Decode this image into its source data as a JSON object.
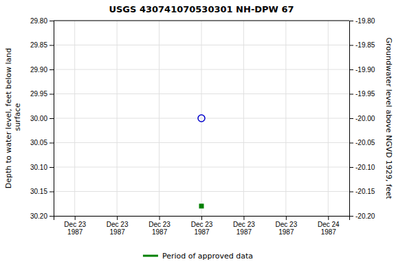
{
  "chart_data": {
    "type": "scatter",
    "title": "USGS 430741070530301 NH-DPW   67",
    "y_label": "Depth to water level, feet below land\n surface",
    "y2_label": "Groundwater level above NGVD 1929, feet",
    "categories": [
      "Dec 23\n1987",
      "Dec 23\n1987",
      "Dec 23\n1987",
      "Dec 23\n1987",
      "Dec 23\n1987",
      "Dec 23\n1987",
      "Dec 24\n1987"
    ],
    "series": [
      {
        "color": "#0000cc",
        "marker": "open-circle",
        "line_style": "none",
        "values": [
          null,
          null,
          null,
          30,
          null,
          null,
          null
        ]
      },
      {
        "name": "Period of approved data",
        "color": "#008000",
        "marker": "square",
        "line_style": "none",
        "values": [
          null,
          null,
          null,
          30.18,
          null,
          null,
          null
        ]
      }
    ],
    "ylim": [
      30.2,
      29.8
    ],
    "yticks": [
      {
        "value": 29.8,
        "label": "29.80"
      },
      {
        "value": 29.85,
        "label": "29.85"
      },
      {
        "value": 29.9,
        "label": "29.90"
      },
      {
        "value": 29.95,
        "label": "29.95"
      },
      {
        "value": 30,
        "label": "30.00"
      },
      {
        "value": 30.05,
        "label": "30.05"
      },
      {
        "value": 30.1,
        "label": "30.10"
      },
      {
        "value": 30.15,
        "label": "30.15"
      },
      {
        "value": 30.2,
        "label": "30.20"
      }
    ],
    "y2lim": [
      -20.2,
      -19.8
    ],
    "y2ticks": [
      {
        "value": -19.8,
        "label": "-19.80"
      },
      {
        "value": -19.85,
        "label": "-19.85"
      },
      {
        "value": -19.9,
        "label": "-19.90"
      },
      {
        "value": -19.95,
        "label": "-19.95"
      },
      {
        "value": -20,
        "label": "-20.00"
      },
      {
        "value": -20.05,
        "label": "-20.05"
      },
      {
        "value": -20.1,
        "label": "-20.10"
      },
      {
        "value": -20.15,
        "label": "-20.15"
      },
      {
        "value": -20.2,
        "label": "-20.20"
      }
    ],
    "grid": true,
    "legend": "bottom"
  }
}
